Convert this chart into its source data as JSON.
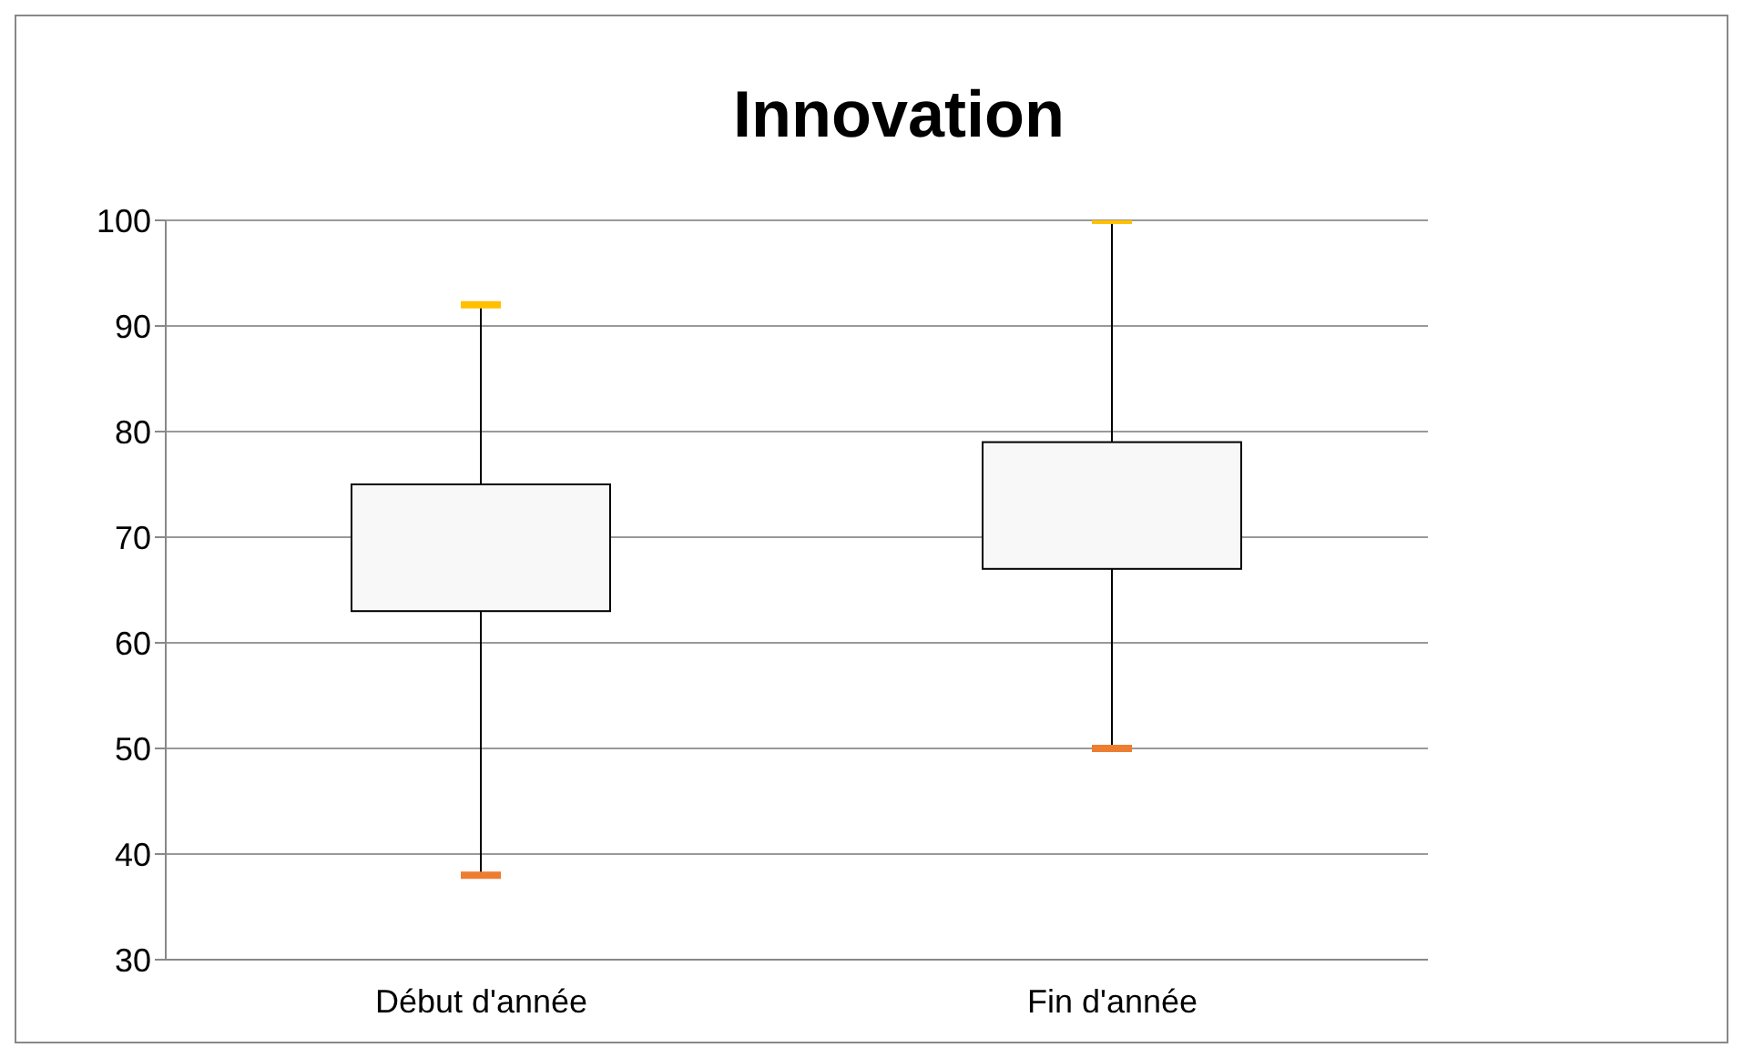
{
  "chart_data": {
    "type": "box",
    "title": "Innovation",
    "categories": [
      "Début d'année",
      "Fin d'année"
    ],
    "series": [
      {
        "color": "#f8f8f8",
        "boxes": [
          {
            "low": 38,
            "q1": 63,
            "q3": 75,
            "high": 92
          },
          {
            "low": 50,
            "q1": 67,
            "q3": 79,
            "high": 100
          }
        ]
      }
    ],
    "ylim": [
      30,
      100
    ],
    "yticks": [
      30,
      40,
      50,
      60,
      70,
      80,
      90,
      100
    ],
    "grid": "y",
    "legend": false
  }
}
